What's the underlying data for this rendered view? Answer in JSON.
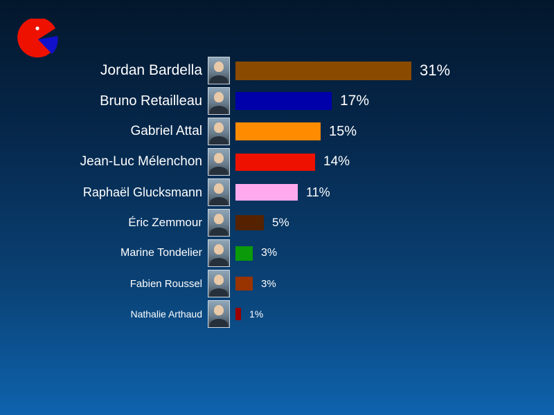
{
  "background": {
    "top_color": "#03172c",
    "bottom_color": "#0e63ae"
  },
  "logo": {
    "name": "pie-logo",
    "main_color": "#ee1100",
    "wedge_color": "#1111cc",
    "dot_color": "#ffffff"
  },
  "chart_data": {
    "type": "bar",
    "orientation": "horizontal",
    "title": "",
    "xlabel": "",
    "ylabel": "",
    "xlim": [
      0,
      33
    ],
    "grid": false,
    "legend": false,
    "categories": [
      "Jordan Bardella",
      "Bruno Retailleau",
      "Gabriel Attal",
      "Jean-Luc Mélenchon",
      "Raphaël Glucksmann",
      "Éric Zemmour",
      "Marine Tondelier",
      "Fabien Roussel",
      "Nathalie Arthaud"
    ],
    "values": [
      31,
      17,
      15,
      14,
      11,
      5,
      3,
      3,
      1
    ],
    "value_labels": [
      "31%",
      "17%",
      "15%",
      "14%",
      "11%",
      "5%",
      "3%",
      "3%",
      "1%"
    ],
    "bar_colors": [
      "#8a4a00",
      "#0000aa",
      "#ff8c00",
      "#ee1100",
      "#ffaaee",
      "#552200",
      "#0a9a0a",
      "#993300",
      "#990000"
    ],
    "row_icons": [
      "portrait-photo",
      "portrait-photo",
      "portrait-photo",
      "portrait-photo",
      "portrait-photo",
      "portrait-photo",
      "portrait-photo",
      "portrait-photo",
      "portrait-photo"
    ]
  }
}
